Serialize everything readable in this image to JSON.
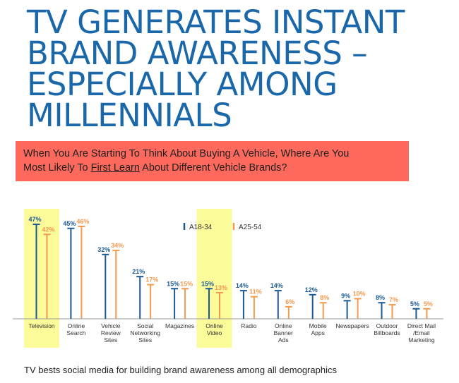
{
  "title_lines": [
    "TV GENERATES INSTANT",
    "BRAND AWARENESS –",
    "ESPECIALLY AMONG",
    "MILLENNIALS"
  ],
  "question": {
    "line1": "When You Are Starting To Think About Buying A Vehicle, Where Are You",
    "line2_pre": "Most Likely To ",
    "line2_underlined": "First Learn",
    "line2_post": " About Different Vehicle Brands?"
  },
  "footer": "TV bests social media for building brand awareness among all demographics",
  "colors": {
    "title": "#1a67a9",
    "question_bg": "#fd6a5d",
    "series_a18_34": "#1b5a93",
    "series_a25_54": "#f29a4e",
    "highlight": "#fbfb9a",
    "baseline": "#9a9a9a"
  },
  "chart_data": {
    "type": "bar",
    "categories": [
      [
        "Television"
      ],
      [
        "Online",
        "Search"
      ],
      [
        "Vehicle",
        "Review",
        "Sites"
      ],
      [
        "Social",
        "Networking",
        "Sites"
      ],
      [
        "Magazines"
      ],
      [
        "Online",
        "Video"
      ],
      [
        "Radio"
      ],
      [
        "Online",
        "Banner",
        "Ads"
      ],
      [
        "Mobile",
        "Apps"
      ],
      [
        "Newspapers"
      ],
      [
        "Outdoor",
        "Billboards"
      ],
      [
        "Direct Mail",
        "/Email",
        "Marketing"
      ]
    ],
    "series": [
      {
        "name": "A18-34",
        "values": [
          47,
          45,
          32,
          21,
          15,
          15,
          14,
          14,
          12,
          9,
          8,
          5
        ],
        "labels": [
          "47%",
          "45%",
          "32%",
          "21%",
          "15%",
          "15%",
          "14%",
          "14%",
          "12%",
          "9%",
          "8%",
          "5%"
        ]
      },
      {
        "name": "A25-54",
        "values": [
          42,
          46,
          34,
          17,
          15,
          13,
          11,
          6,
          8,
          10,
          7,
          5
        ],
        "labels": [
          "42%",
          "46%",
          "34%",
          "17%",
          "15%",
          "13%",
          "11%",
          "6%",
          "8%",
          "10%",
          "7%",
          "5%"
        ]
      }
    ],
    "highlighted_categories": [
      0,
      5
    ],
    "ylim": [
      0,
      50
    ],
    "legend_position": "top-center"
  }
}
